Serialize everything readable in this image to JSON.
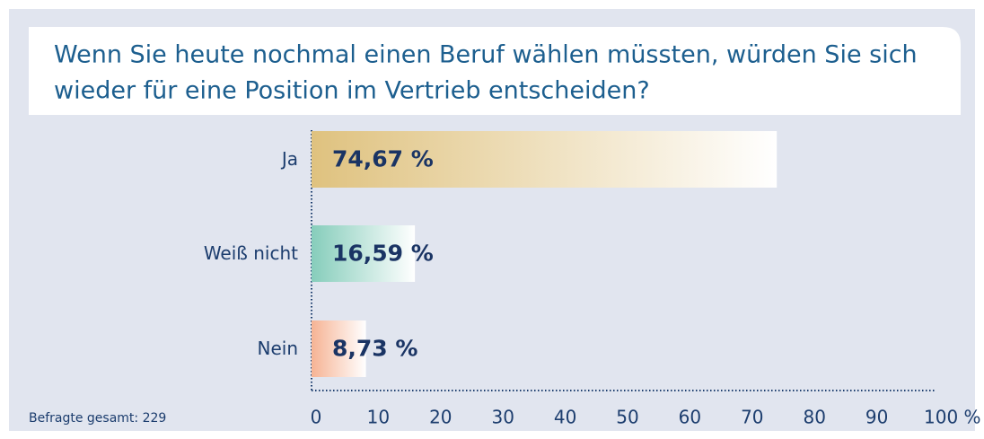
{
  "chart_data": {
    "type": "barh",
    "title": [
      "Wenn Sie heute nochmal einen Beruf wählen müssten, würden Sie sich",
      "wieder für eine Position im Vertrieb entscheiden?"
    ],
    "categories": [
      "Ja",
      "Weiß nicht",
      "Nein"
    ],
    "values": [
      74.67,
      16.59,
      8.73
    ],
    "value_labels": [
      "74,67 %",
      "16,59 %",
      "8,73 %"
    ],
    "colors": [
      "#dfc27f",
      "#86cdbb",
      "#f6b394"
    ],
    "xlim": [
      0,
      100
    ],
    "xticks": [
      0,
      10,
      20,
      30,
      40,
      50,
      60,
      70,
      80,
      90,
      {
        "value": 100,
        "label": "100 %"
      }
    ],
    "footnote": "Befragte gesamt: 229"
  }
}
